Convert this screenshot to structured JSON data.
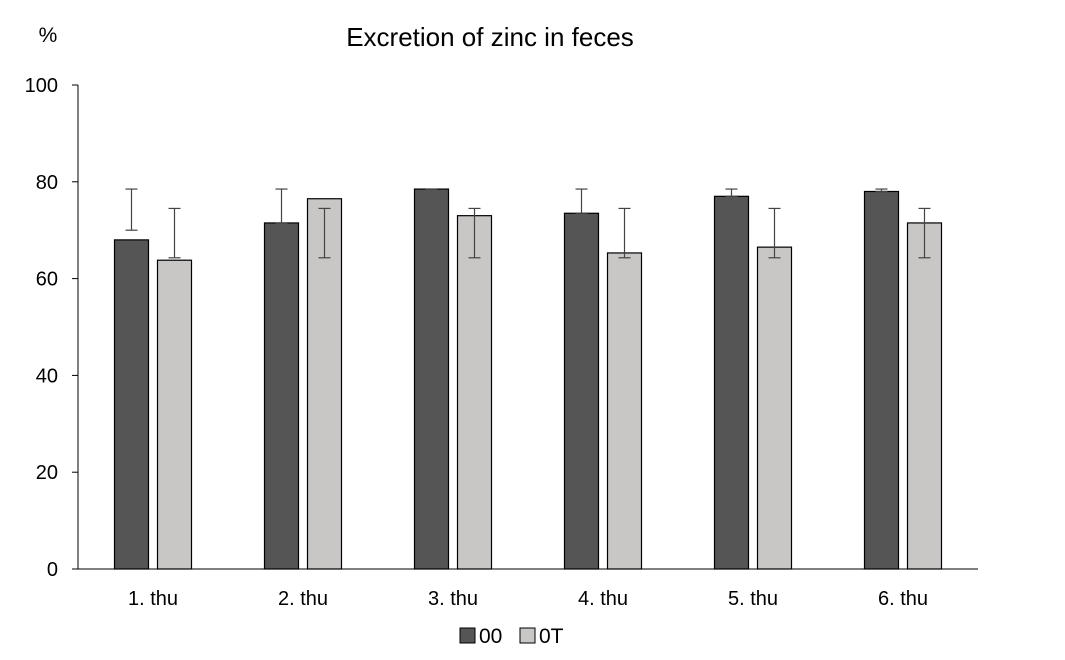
{
  "chart_data": {
    "type": "bar",
    "title": "Excretion of zinc in feces",
    "ylabel": "%",
    "xlabel": "",
    "ylim": [
      0,
      100
    ],
    "yticks": [
      0,
      20,
      40,
      60,
      80,
      100
    ],
    "categories": [
      "1. thu",
      "2. thu",
      "3. thu",
      "4. thu",
      "5. thu",
      "6. thu"
    ],
    "series": [
      {
        "name": "00",
        "color": "#555555",
        "values": [
          68,
          71.5,
          78.5,
          73.5,
          77,
          78
        ],
        "error_low": [
          70,
          71.5,
          78.5,
          73.5,
          77,
          78
        ],
        "error_high": [
          78.5,
          78.5,
          78.5,
          78.5,
          78.5,
          78.5
        ]
      },
      {
        "name": "0T",
        "color": "#c9c6c6",
        "values": [
          63.8,
          76.5,
          73,
          65.3,
          66.5,
          71.5
        ],
        "error_low": [
          64.3,
          64.3,
          64.3,
          64.3,
          64.3,
          64.3
        ],
        "error_high": [
          74.5,
          74.5,
          74.5,
          74.5,
          74.5,
          74.5
        ]
      }
    ],
    "legend_position": "bottom-center",
    "grid": false
  }
}
